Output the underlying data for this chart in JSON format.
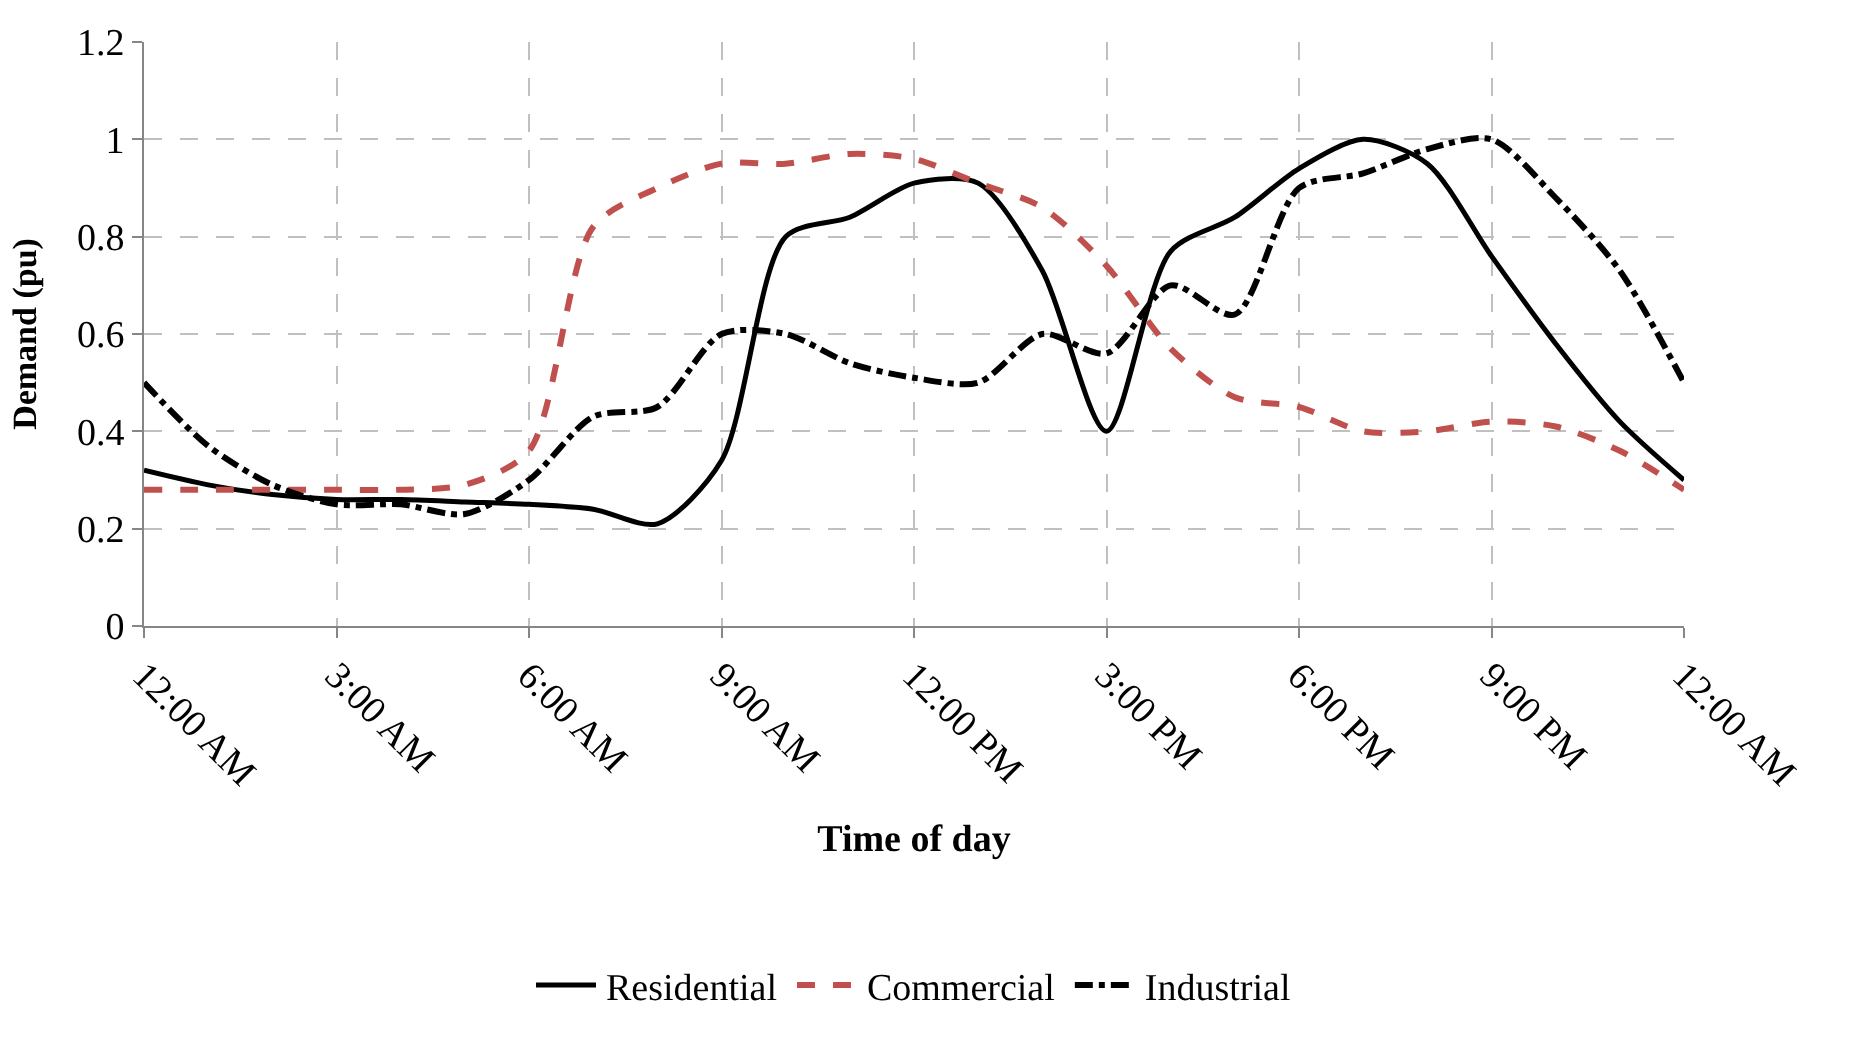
{
  "chart_data": {
    "type": "line",
    "xlabel": "Time of day",
    "ylabel": "Demand (pu)",
    "x": [
      0,
      1,
      2,
      3,
      4,
      5,
      6,
      7,
      8,
      9,
      10,
      11,
      12,
      13,
      14,
      15,
      16,
      17,
      18,
      19,
      20,
      21,
      22,
      23,
      24
    ],
    "series": [
      {
        "name": "Residential",
        "color": "#000000",
        "line_style": "solid",
        "values": [
          0.32,
          0.29,
          0.27,
          0.26,
          0.26,
          0.255,
          0.25,
          0.24,
          0.21,
          0.34,
          0.8,
          0.84,
          0.91,
          0.91,
          0.73,
          0.4,
          0.77,
          0.84,
          0.94,
          1.0,
          0.95,
          0.76,
          0.58,
          0.42,
          0.3
        ]
      },
      {
        "name": "Commercial",
        "color": "#c0504d",
        "line_style": "dashed",
        "values": [
          0.28,
          0.28,
          0.28,
          0.28,
          0.28,
          0.29,
          0.36,
          0.82,
          0.9,
          0.95,
          0.95,
          0.97,
          0.96,
          0.91,
          0.86,
          0.74,
          0.57,
          0.47,
          0.45,
          0.4,
          0.4,
          0.42,
          0.41,
          0.36,
          0.28
        ]
      },
      {
        "name": "Industrial",
        "color": "#000000",
        "line_style": "dashdot",
        "values": [
          0.5,
          0.37,
          0.29,
          0.25,
          0.25,
          0.23,
          0.3,
          0.43,
          0.45,
          0.6,
          0.6,
          0.54,
          0.51,
          0.5,
          0.6,
          0.56,
          0.7,
          0.64,
          0.9,
          0.93,
          0.98,
          1.0,
          0.88,
          0.73,
          0.5
        ]
      }
    ],
    "xlim": [
      0,
      24
    ],
    "xticks": [
      {
        "value": 0,
        "label": "12:00 AM"
      },
      {
        "value": 3,
        "label": "3:00 AM"
      },
      {
        "value": 6,
        "label": "6:00 AM"
      },
      {
        "value": 9,
        "label": "9:00 AM"
      },
      {
        "value": 12,
        "label": "12:00 PM"
      },
      {
        "value": 15,
        "label": "3:00 PM"
      },
      {
        "value": 18,
        "label": "6:00 PM"
      },
      {
        "value": 21,
        "label": "9:00 PM"
      },
      {
        "value": 24,
        "label": "12:00 AM"
      }
    ],
    "ylim": [
      0,
      1.2
    ],
    "yticks": [
      {
        "value": 0,
        "label": "0"
      },
      {
        "value": 0.2,
        "label": "0.2"
      },
      {
        "value": 0.4,
        "label": "0.4"
      },
      {
        "value": 0.6,
        "label": "0.6"
      },
      {
        "value": 0.8,
        "label": "0.8"
      },
      {
        "value": 1,
        "label": "1"
      },
      {
        "value": 1.2,
        "label": "1.2"
      }
    ],
    "grid": true,
    "legend": "bottom",
    "marker": "none"
  }
}
